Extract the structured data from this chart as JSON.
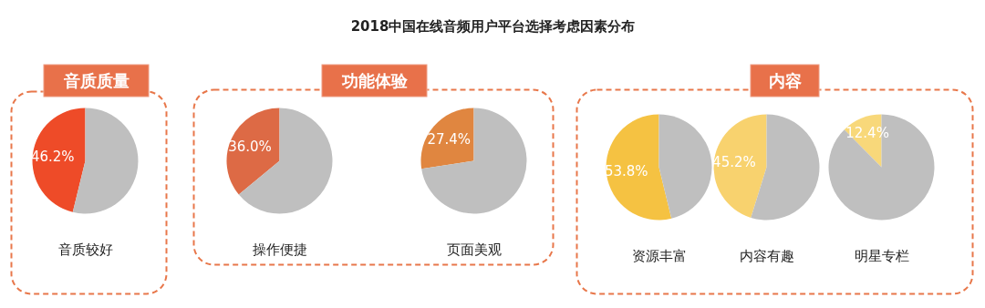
{
  "chart_data": [
    {
      "type": "other",
      "title": "2018中国在线音频用户平台选择考虑因素分布",
      "annotations": [
        "音质质量",
        "功能体验",
        "内容"
      ]
    },
    {
      "type": "pie",
      "title": "音质较好",
      "categories": [
        null,
        null
      ],
      "values": [
        46.2,
        53.8
      ],
      "colors": [
        "#ee4b28",
        "#bfbfbf"
      ],
      "value_labels": [
        "46.2%",
        null
      ]
    },
    {
      "type": "pie",
      "title": "操作便捷",
      "categories": [
        null,
        null
      ],
      "values": [
        36.0,
        64.0
      ],
      "colors": [
        "#dd6a45",
        "#bfbfbf"
      ],
      "value_labels": [
        "36.0%",
        null
      ]
    },
    {
      "type": "pie",
      "title": "页面美观",
      "categories": [
        null,
        null
      ],
      "values": [
        27.4,
        72.6
      ],
      "colors": [
        "#e08640",
        "#bfbfbf"
      ],
      "value_labels": [
        "27.4%",
        null
      ]
    },
    {
      "type": "pie",
      "title": "资源丰富",
      "categories": [
        null,
        null
      ],
      "values": [
        53.8,
        46.2
      ],
      "colors": [
        "#f5c242",
        "#bfbfbf"
      ],
      "value_labels": [
        "53.8%",
        null
      ]
    },
    {
      "type": "pie",
      "title": "内容有趣",
      "categories": [
        null,
        null
      ],
      "values": [
        45.2,
        54.8
      ],
      "colors": [
        "#f8d26e",
        "#bfbfbf"
      ],
      "value_labels": [
        "45.2%",
        null
      ]
    },
    {
      "type": "pie",
      "title": "明星专栏",
      "categories": [
        null,
        null
      ],
      "values": [
        12.4,
        87.6
      ],
      "colors": [
        "#f8d87a",
        "#bfbfbf"
      ],
      "value_labels": [
        "12.4%",
        null
      ]
    }
  ]
}
